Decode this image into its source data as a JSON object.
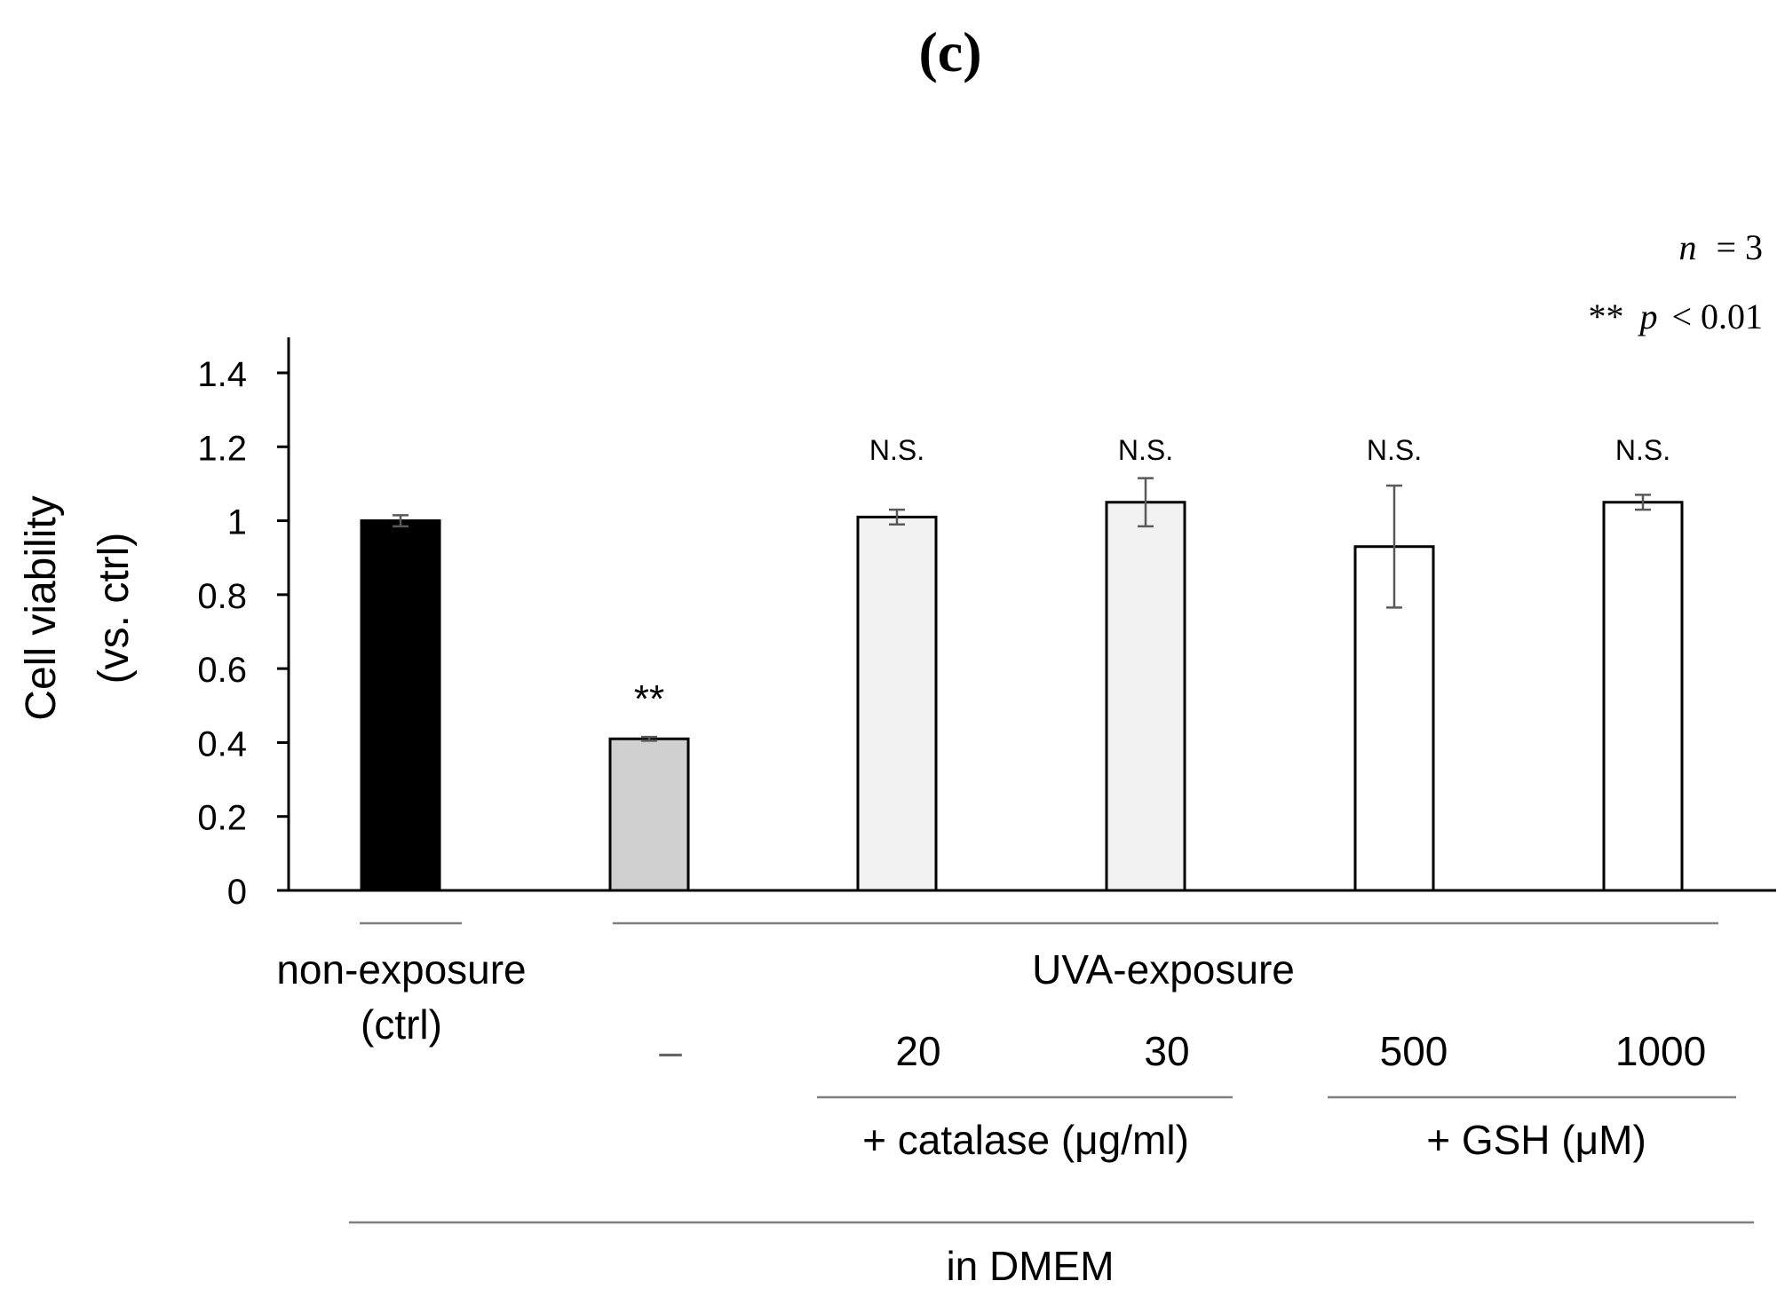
{
  "figure_label": "(c)",
  "annotations": {
    "n_label": "n",
    "n_equals": "= 3",
    "p_stars": "**",
    "p_label": "p",
    "p_threshold": "< 0.01"
  },
  "colors": {
    "axis": "#000000",
    "bracket": "#7f7f7f",
    "errorbar": "#595959"
  },
  "chart_data": {
    "type": "bar",
    "ylabel_line1": "Cell viability",
    "ylabel_line2": "(vs. ctrl)",
    "ylim": [
      0,
      1.4
    ],
    "yticks": [
      "0",
      "0.2",
      "0.4",
      "0.6",
      "0.8",
      "1",
      "1.2",
      "1.4"
    ],
    "ytick_values": [
      0,
      0.2,
      0.4,
      0.6,
      0.8,
      1.0,
      1.2,
      1.4
    ],
    "categories": [
      "non-exposure (ctrl)",
      "UVA –",
      "catalase 20",
      "catalase 30",
      "GSH 500",
      "GSH 1000"
    ],
    "values": [
      1.0,
      0.41,
      1.01,
      1.05,
      0.93,
      1.05
    ],
    "errors": [
      0.015,
      0.005,
      0.02,
      0.065,
      0.165,
      0.02
    ],
    "bar_colors": [
      "#000000",
      "#d0d0d0",
      "#f2f2f2",
      "#f2f2f2",
      "#ffffff",
      "#ffffff"
    ],
    "significance": [
      "",
      "**",
      "N.S.",
      "N.S.",
      "N.S.",
      "N.S."
    ]
  },
  "groups": {
    "ctrl_line1": "non-exposure",
    "ctrl_line2": "(ctrl)",
    "uva": "UVA-exposure",
    "dash": "–",
    "catalase_doses": [
      "20",
      "30"
    ],
    "catalase_label": "+ catalase (μg/ml)",
    "gsh_doses": [
      "500",
      "1000"
    ],
    "gsh_label": "+ GSH (μM)",
    "medium": "in DMEM"
  }
}
